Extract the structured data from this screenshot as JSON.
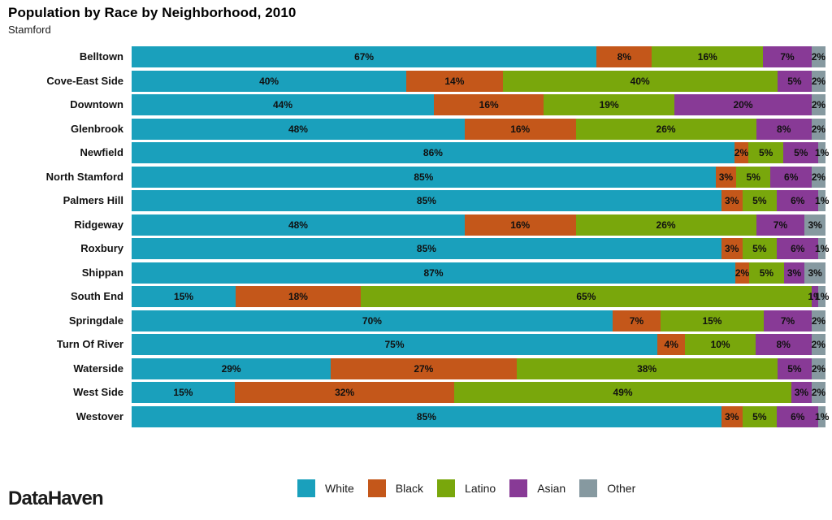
{
  "brand": "DataHaven",
  "chart_data": {
    "type": "bar",
    "stacked": true,
    "orientation": "horizontal",
    "title": "Population by Race by Neighborhood, 2010",
    "subtitle": "Stamford",
    "unit": "%",
    "legend_position": "bottom",
    "series_names": [
      "White",
      "Black",
      "Latino",
      "Asian",
      "Other"
    ],
    "colors": [
      "#1aa0bc",
      "#c4571a",
      "#79a70c",
      "#883a96",
      "#8699a0"
    ],
    "categories": [
      "Belltown",
      "Cove-East Side",
      "Downtown",
      "Glenbrook",
      "Newfield",
      "North Stamford",
      "Palmers Hill",
      "Ridgeway",
      "Roxbury",
      "Shippan",
      "South End",
      "Springdale",
      "Turn Of River",
      "Waterside",
      "West Side",
      "Westover"
    ],
    "rows": [
      {
        "neighborhood": "Belltown",
        "values": [
          67,
          8,
          16,
          7,
          2
        ]
      },
      {
        "neighborhood": "Cove-East Side",
        "values": [
          40,
          14,
          40,
          5,
          2
        ]
      },
      {
        "neighborhood": "Downtown",
        "values": [
          44,
          16,
          19,
          20,
          2
        ]
      },
      {
        "neighborhood": "Glenbrook",
        "values": [
          48,
          16,
          26,
          8,
          2
        ]
      },
      {
        "neighborhood": "Newfield",
        "values": [
          86,
          2,
          5,
          5,
          1
        ]
      },
      {
        "neighborhood": "North Stamford",
        "values": [
          85,
          3,
          5,
          6,
          2
        ]
      },
      {
        "neighborhood": "Palmers Hill",
        "values": [
          85,
          3,
          5,
          6,
          1
        ]
      },
      {
        "neighborhood": "Ridgeway",
        "values": [
          48,
          16,
          26,
          7,
          3
        ]
      },
      {
        "neighborhood": "Roxbury",
        "values": [
          85,
          3,
          5,
          6,
          1
        ]
      },
      {
        "neighborhood": "Shippan",
        "values": [
          87,
          2,
          5,
          3,
          3
        ]
      },
      {
        "neighborhood": "South End",
        "values": [
          15,
          18,
          65,
          1,
          1
        ]
      },
      {
        "neighborhood": "Springdale",
        "values": [
          70,
          7,
          15,
          7,
          2
        ]
      },
      {
        "neighborhood": "Turn Of River",
        "values": [
          75,
          4,
          10,
          8,
          2
        ]
      },
      {
        "neighborhood": "Waterside",
        "values": [
          29,
          27,
          38,
          5,
          2
        ]
      },
      {
        "neighborhood": "West Side",
        "values": [
          15,
          32,
          49,
          3,
          2
        ]
      },
      {
        "neighborhood": "Westover",
        "values": [
          85,
          3,
          5,
          6,
          1
        ]
      }
    ]
  }
}
